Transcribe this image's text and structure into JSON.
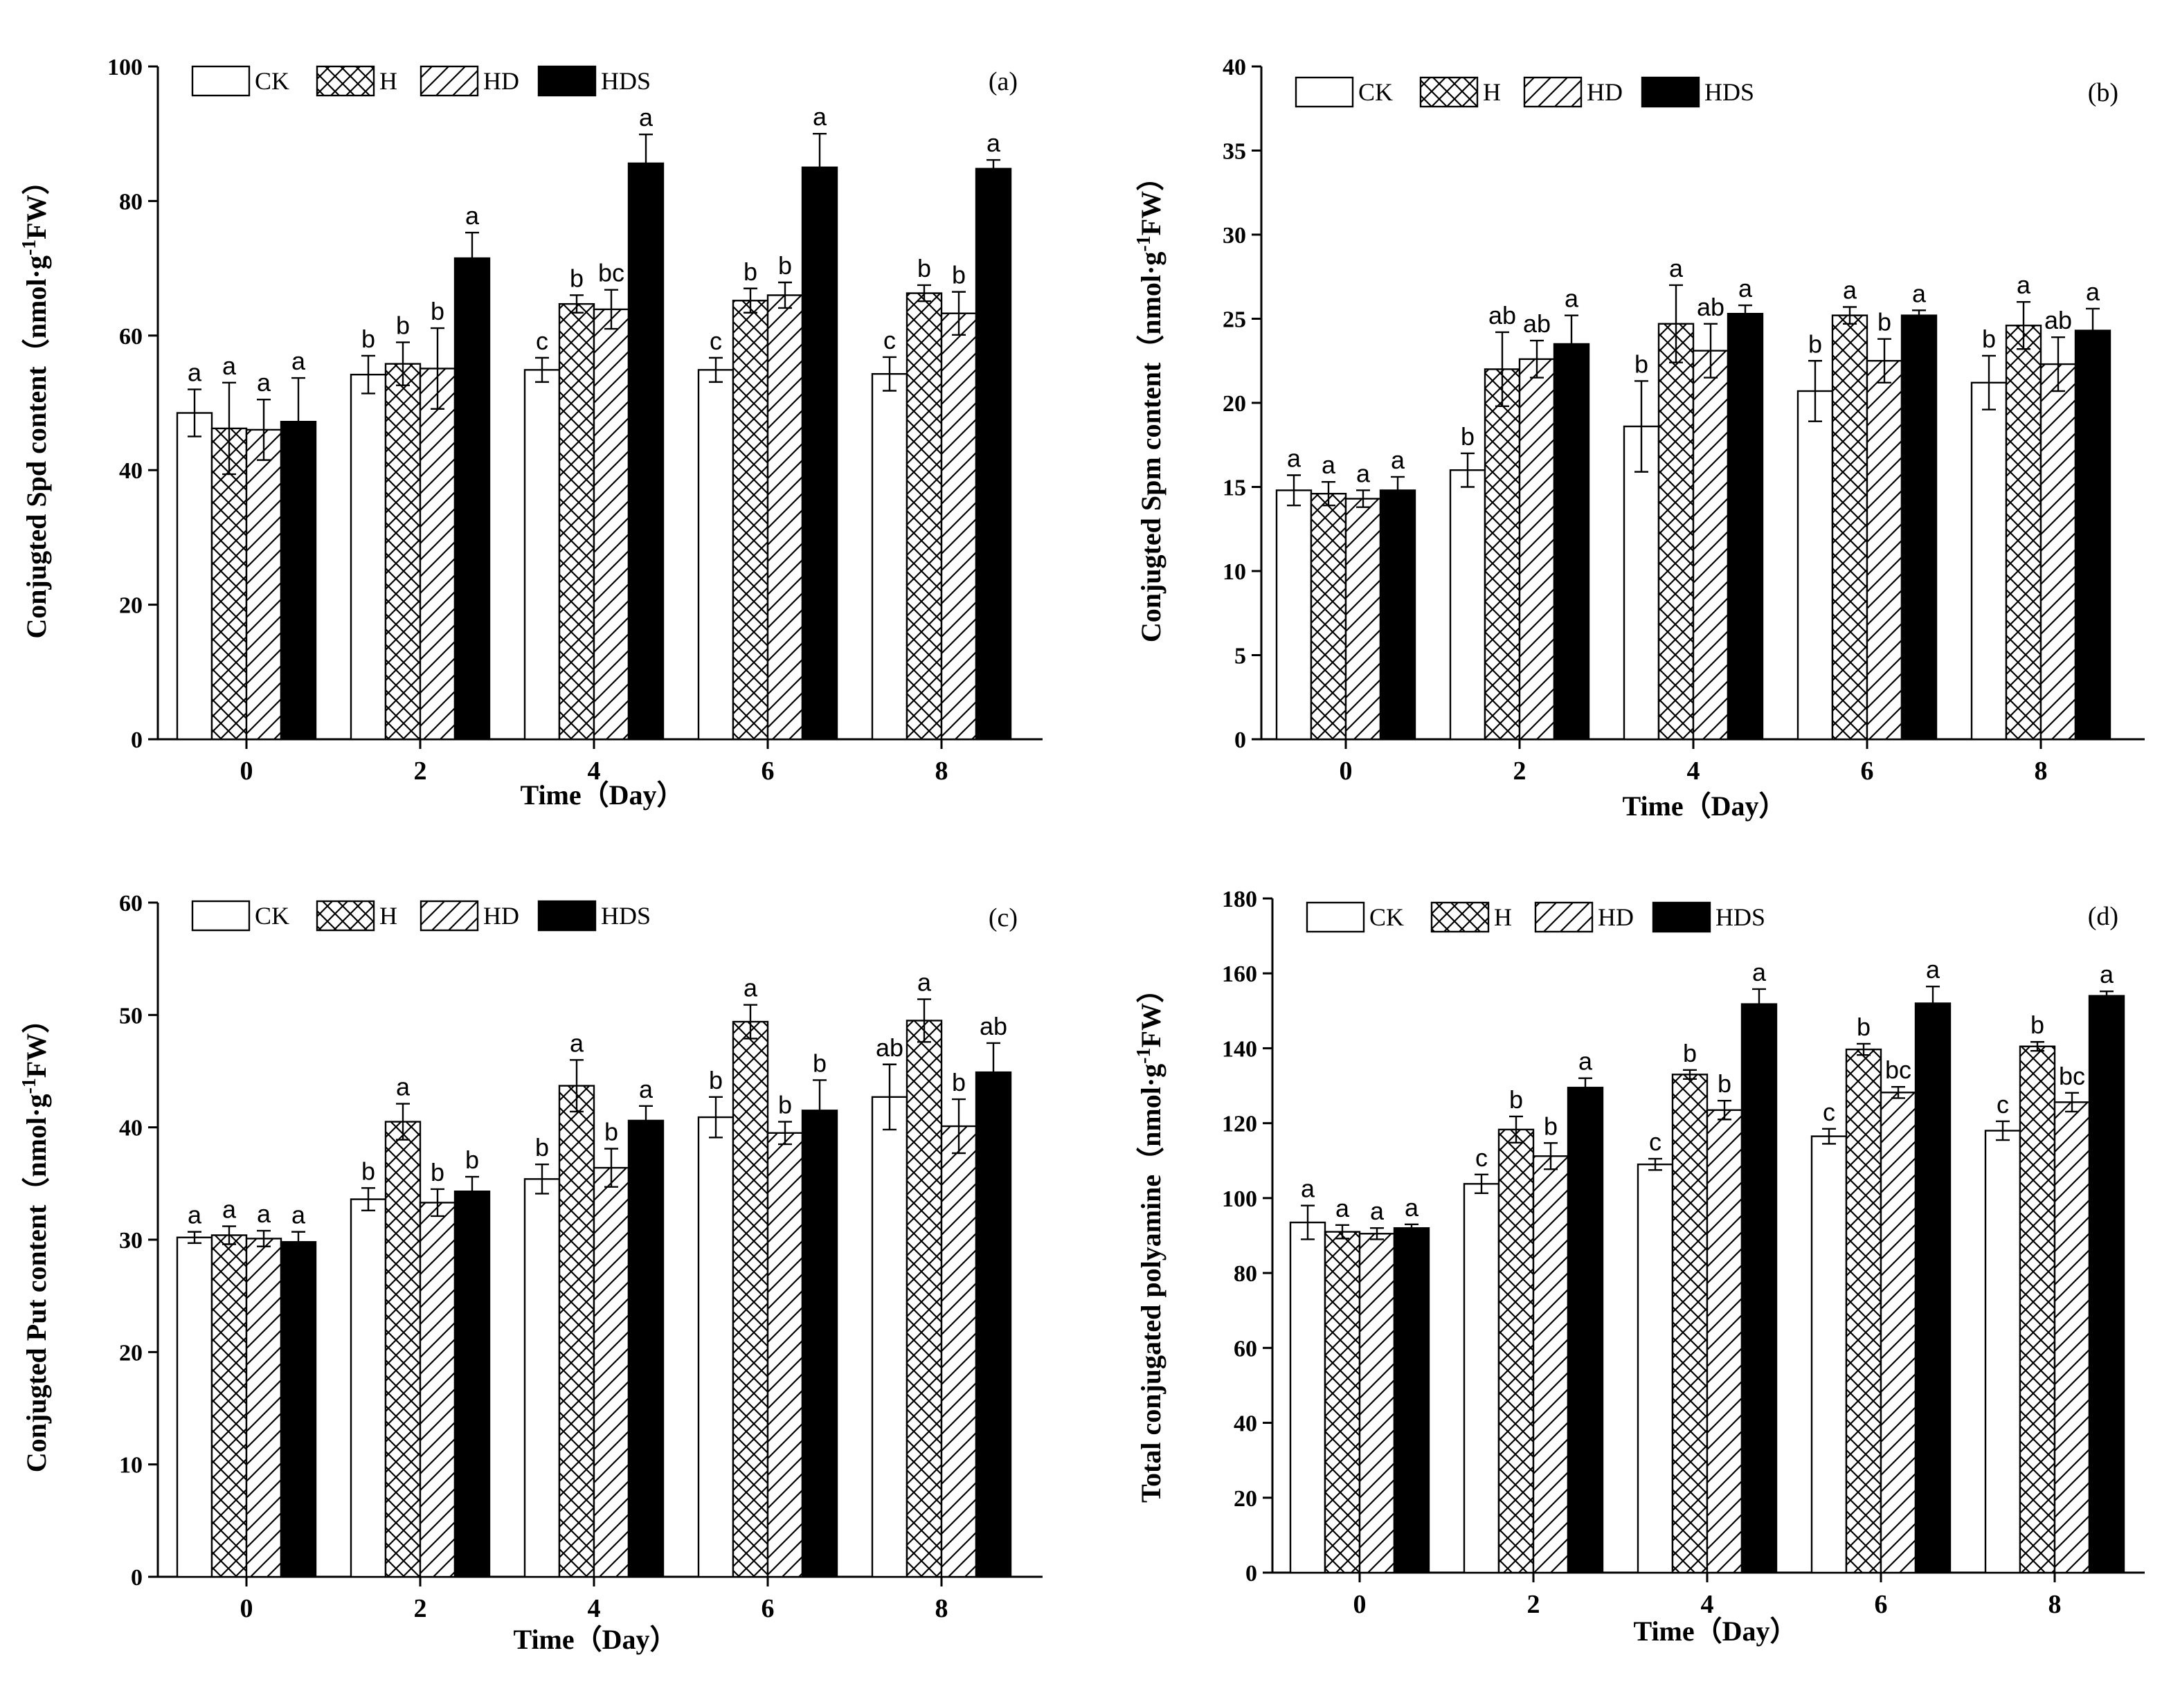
{
  "figure": {
    "legend_labels": [
      "CK",
      "H",
      "HD",
      "HDS"
    ],
    "series_styles": {
      "CK": {
        "fill": "#ffffff",
        "pattern": "none"
      },
      "H": {
        "fill": "#ffffff",
        "pattern": "crosshatch"
      },
      "HD": {
        "fill": "#ffffff",
        "pattern": "diagonal"
      },
      "HDS": {
        "fill": "#000000",
        "pattern": "solid"
      }
    },
    "colors": {
      "ink": "#000000",
      "paper": "#ffffff"
    }
  },
  "chart_data": [
    {
      "type": "bar",
      "panel": "(a)",
      "ylabel_main": "Conjugted Spd content",
      "ylabel_unit_pre": "（nmol·g",
      "ylabel_unit_sup": "-1",
      "ylabel_unit_post": "FW）",
      "xlabel": "Time（Day）",
      "categories": [
        "0",
        "2",
        "4",
        "6",
        "8"
      ],
      "ylim": [
        0,
        100
      ],
      "yticks": [
        0,
        20,
        40,
        60,
        80,
        100
      ],
      "series": [
        {
          "name": "CK",
          "values": [
            48.5,
            54.2,
            54.9,
            54.9,
            54.3
          ],
          "errors": [
            3.5,
            2.8,
            1.8,
            1.8,
            2.5
          ],
          "letters": [
            "a",
            "b",
            "c",
            "c",
            "c"
          ]
        },
        {
          "name": "H",
          "values": [
            46.2,
            55.8,
            64.7,
            65.2,
            66.3
          ],
          "errors": [
            6.8,
            3.2,
            1.3,
            1.8,
            1.2
          ],
          "letters": [
            "a",
            "b",
            "b",
            "b",
            "b"
          ]
        },
        {
          "name": "HD",
          "values": [
            46.0,
            55.1,
            63.9,
            66.0,
            63.3
          ],
          "errors": [
            4.5,
            6.0,
            2.9,
            1.9,
            3.2
          ],
          "letters": [
            "a",
            "b",
            "bc",
            "b",
            "b"
          ]
        },
        {
          "name": "HDS",
          "values": [
            47.2,
            71.5,
            85.6,
            85.0,
            84.8
          ],
          "errors": [
            6.5,
            3.8,
            4.3,
            5.0,
            1.3
          ],
          "letters": [
            "a",
            "a",
            "a",
            "a",
            "a"
          ]
        }
      ]
    },
    {
      "type": "bar",
      "panel": "(b)",
      "ylabel_main": "Conjugted Spm content",
      "ylabel_unit_pre": "（nmol·g",
      "ylabel_unit_sup": "-1",
      "ylabel_unit_post": "FW）",
      "xlabel": "Time（Day）",
      "categories": [
        "0",
        "2",
        "4",
        "6",
        "8"
      ],
      "ylim": [
        0,
        40
      ],
      "yticks": [
        0,
        5,
        10,
        15,
        20,
        25,
        30,
        35,
        40
      ],
      "series": [
        {
          "name": "CK",
          "values": [
            14.8,
            16.0,
            18.6,
            20.7,
            21.2
          ],
          "errors": [
            0.9,
            1.0,
            2.7,
            1.8,
            1.6
          ],
          "letters": [
            "a",
            "b",
            "b",
            "b",
            "b"
          ]
        },
        {
          "name": "H",
          "values": [
            14.6,
            22.0,
            24.7,
            25.2,
            24.6
          ],
          "errors": [
            0.7,
            2.2,
            2.3,
            0.5,
            1.4
          ],
          "letters": [
            "a",
            "ab",
            "a",
            "a",
            "a"
          ]
        },
        {
          "name": "HD",
          "values": [
            14.3,
            22.6,
            23.1,
            22.5,
            22.3
          ],
          "errors": [
            0.5,
            1.1,
            1.6,
            1.3,
            1.6
          ],
          "letters": [
            "a",
            "ab",
            "ab",
            "b",
            "ab"
          ]
        },
        {
          "name": "HDS",
          "values": [
            14.8,
            23.5,
            25.3,
            25.2,
            24.3
          ],
          "errors": [
            0.8,
            1.7,
            0.5,
            0.3,
            1.3
          ],
          "letters": [
            "a",
            "a",
            "a",
            "a",
            "a"
          ]
        }
      ]
    },
    {
      "type": "bar",
      "panel": "(c)",
      "ylabel_main": "Conjugted Put content",
      "ylabel_unit_pre": "（nmol·g",
      "ylabel_unit_sup": "-1",
      "ylabel_unit_post": "FW）",
      "xlabel": "Time（Day）",
      "categories": [
        "0",
        "2",
        "4",
        "6",
        "8"
      ],
      "ylim": [
        0,
        60
      ],
      "yticks": [
        0,
        10,
        20,
        30,
        40,
        50,
        60
      ],
      "series": [
        {
          "name": "CK",
          "values": [
            30.2,
            33.6,
            35.4,
            40.9,
            42.7
          ],
          "errors": [
            0.5,
            1.0,
            1.3,
            1.8,
            2.9
          ],
          "letters": [
            "a",
            "b",
            "b",
            "b",
            "ab"
          ]
        },
        {
          "name": "H",
          "values": [
            30.4,
            40.5,
            43.7,
            49.4,
            49.5
          ],
          "errors": [
            0.8,
            1.6,
            2.3,
            1.5,
            1.9
          ],
          "letters": [
            "a",
            "a",
            "a",
            "a",
            "a"
          ]
        },
        {
          "name": "HD",
          "values": [
            30.1,
            33.3,
            36.4,
            39.5,
            40.1
          ],
          "errors": [
            0.7,
            1.2,
            1.7,
            1.0,
            2.4
          ],
          "letters": [
            "a",
            "b",
            "b",
            "b",
            "b"
          ]
        },
        {
          "name": "HDS",
          "values": [
            29.8,
            34.3,
            40.6,
            41.5,
            44.9
          ],
          "errors": [
            0.9,
            1.3,
            1.3,
            2.7,
            2.6
          ],
          "letters": [
            "a",
            "b",
            "a",
            "b",
            "ab"
          ]
        }
      ]
    },
    {
      "type": "bar",
      "panel": "(d)",
      "ylabel_main": "Total conjugated polyamine",
      "ylabel_unit_pre": "（nmol·g",
      "ylabel_unit_sup": "-1",
      "ylabel_unit_post": "FW）",
      "xlabel": "Time（Day）",
      "categories": [
        "0",
        "2",
        "4",
        "6",
        "8"
      ],
      "ylim": [
        0,
        180
      ],
      "yticks": [
        0,
        20,
        40,
        60,
        80,
        100,
        120,
        140,
        160,
        180
      ],
      "series": [
        {
          "name": "CK",
          "values": [
            93.5,
            103.8,
            109.0,
            116.5,
            118.0
          ],
          "errors": [
            4.5,
            2.5,
            1.5,
            2.0,
            2.5
          ],
          "letters": [
            "a",
            "c",
            "c",
            "c",
            "c"
          ]
        },
        {
          "name": "H",
          "values": [
            91.0,
            118.3,
            133.0,
            139.7,
            140.5
          ],
          "errors": [
            1.8,
            3.5,
            1.2,
            1.5,
            1.2
          ],
          "letters": [
            "a",
            "b",
            "b",
            "b",
            "b"
          ]
        },
        {
          "name": "HD",
          "values": [
            90.5,
            111.2,
            123.5,
            128.2,
            125.6
          ],
          "errors": [
            1.5,
            3.5,
            2.5,
            1.5,
            2.5
          ],
          "letters": [
            "a",
            "b",
            "b",
            "bc",
            "bc"
          ]
        },
        {
          "name": "HDS",
          "values": [
            92.0,
            129.5,
            151.8,
            152.0,
            154.0
          ],
          "errors": [
            1.0,
            2.5,
            4.0,
            4.5,
            1.2
          ],
          "letters": [
            "a",
            "a",
            "a",
            "a",
            "a"
          ]
        }
      ]
    }
  ]
}
